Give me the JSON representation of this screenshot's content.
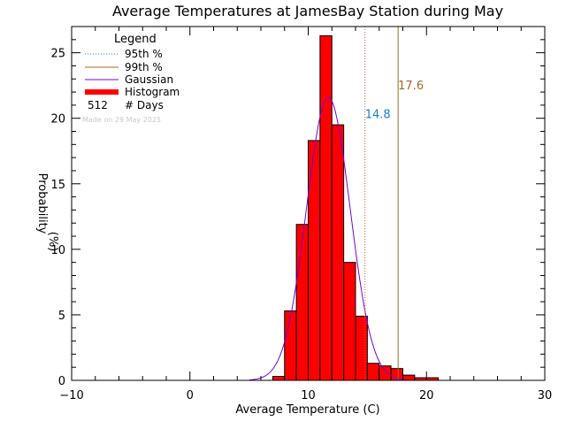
{
  "chart_data": {
    "type": "bar",
    "title": "Average Temperatures at JamesBay Station during May",
    "xlabel": "Average Temperature (C)",
    "ylabel": "Probability",
    "ylabel2": "(%)",
    "xlim": [
      -10,
      30
    ],
    "ylim": [
      0,
      27
    ],
    "xticks": [
      -10,
      0,
      10,
      20,
      30
    ],
    "yticks": [
      0,
      5,
      10,
      15,
      20,
      25
    ],
    "grid": false,
    "bins": [
      {
        "x0": 7,
        "x1": 8,
        "value": 0.3
      },
      {
        "x0": 8,
        "x1": 9,
        "value": 5.3
      },
      {
        "x0": 9,
        "x1": 10,
        "value": 11.9
      },
      {
        "x0": 10,
        "x1": 11,
        "value": 18.3
      },
      {
        "x0": 11,
        "x1": 12,
        "value": 26.3
      },
      {
        "x0": 12,
        "x1": 13,
        "value": 19.5
      },
      {
        "x0": 13,
        "x1": 14,
        "value": 9.0
      },
      {
        "x0": 14,
        "x1": 15,
        "value": 4.9
      },
      {
        "x0": 15,
        "x1": 16,
        "value": 1.3
      },
      {
        "x0": 16,
        "x1": 17,
        "value": 1.1
      },
      {
        "x0": 17,
        "x1": 18,
        "value": 0.9
      },
      {
        "x0": 18,
        "x1": 19,
        "value": 0.4
      },
      {
        "x0": 19,
        "x1": 20,
        "value": 0.2
      },
      {
        "x0": 20,
        "x1": 21,
        "value": 0.2
      }
    ],
    "gaussian": {
      "mean": 11.7,
      "sd": 1.85,
      "peak": 21.6
    },
    "p95": {
      "value": 14.8,
      "label": "14.8"
    },
    "p99": {
      "value": 17.6,
      "label": "17.6"
    },
    "legend": {
      "title": "Legend",
      "placement": "top-left",
      "entries": [
        "95th %",
        "99th %",
        "Gaussian",
        "Histogram"
      ],
      "count_value": "512",
      "count_label": "# Days"
    },
    "note": "Made on 29 May 2025",
    "colors": {
      "histogram": "#ff0000",
      "gaussian": "#7a00d6",
      "p95": "#e0532a",
      "p95_label": "#1a7fd0",
      "p99": "#a0692a",
      "note": "#c8c8c8"
    }
  }
}
